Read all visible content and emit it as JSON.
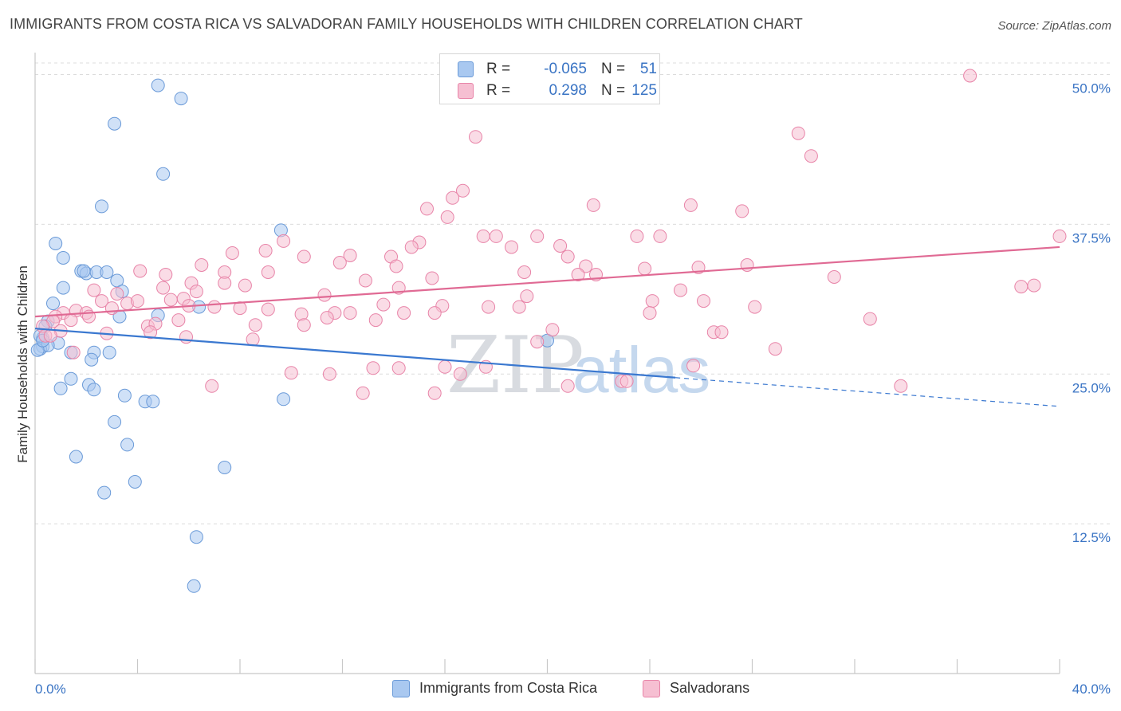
{
  "header": {
    "title": "IMMIGRANTS FROM COSTA RICA VS SALVADORAN FAMILY HOUSEHOLDS WITH CHILDREN CORRELATION CHART",
    "source": "Source: ZipAtlas.com"
  },
  "watermark": {
    "zip": "ZIP",
    "atlas": "atlas"
  },
  "legend": {
    "rows": [
      {
        "r_label": "R =",
        "r_value": "-0.065",
        "n_label": "N =",
        "n_value": "51",
        "color": "#a9c8f0",
        "border": "#6a9ad8"
      },
      {
        "r_label": "R =",
        "r_value": "0.298",
        "n_label": "N =",
        "n_value": "125",
        "color": "#f6bfd2",
        "border": "#e884a8"
      }
    ]
  },
  "bottom_legend": [
    {
      "label": "Immigrants from Costa Rica",
      "color": "#a9c8f0",
      "border": "#6a9ad8"
    },
    {
      "label": "Salvadorans",
      "color": "#f6bfd2",
      "border": "#e884a8"
    }
  ],
  "chart_data": {
    "type": "scatter",
    "title": "IMMIGRANTS FROM COSTA RICA VS SALVADORAN FAMILY HOUSEHOLDS WITH CHILDREN CORRELATION CHART",
    "xlabel": "",
    "ylabel": "Family Households with Children",
    "xlim": [
      0,
      40
    ],
    "ylim": [
      0,
      51.5
    ],
    "x_tick_labels": [
      "0.0%",
      "40.0%"
    ],
    "y_ticks": [
      12.5,
      25.0,
      37.5,
      50.0
    ],
    "y_tick_labels": [
      "12.5%",
      "25.0%",
      "37.5%",
      "50.0%"
    ],
    "grid": "dashed horizontal",
    "legend_position": "top-center",
    "series": [
      {
        "name": "Immigrants from Costa Rica",
        "color": "#6a9ad8",
        "fill": "#a9c8f0",
        "trend": {
          "x0": 0,
          "y0": 28.8,
          "x1": 25.0,
          "y1": 24.7,
          "dash_to_x": 40.0,
          "dash_to_y": 22.3,
          "color": "#3a78d0"
        },
        "points": [
          [
            4.8,
            49.1
          ],
          [
            5.7,
            48.0
          ],
          [
            3.1,
            45.9
          ],
          [
            5.0,
            41.7
          ],
          [
            2.6,
            39.0
          ],
          [
            9.6,
            37.0
          ],
          [
            0.8,
            35.9
          ],
          [
            1.1,
            34.7
          ],
          [
            1.8,
            33.6
          ],
          [
            2.0,
            33.4
          ],
          [
            2.4,
            33.5
          ],
          [
            2.8,
            33.5
          ],
          [
            3.2,
            32.8
          ],
          [
            3.4,
            31.9
          ],
          [
            1.1,
            32.2
          ],
          [
            0.7,
            30.9
          ],
          [
            6.4,
            30.6
          ],
          [
            4.8,
            29.9
          ],
          [
            3.3,
            29.8
          ],
          [
            0.5,
            29.4
          ],
          [
            0.4,
            29.0
          ],
          [
            0.3,
            28.0
          ],
          [
            0.9,
            27.6
          ],
          [
            0.3,
            27.3
          ],
          [
            0.2,
            27.1
          ],
          [
            1.4,
            26.8
          ],
          [
            2.3,
            26.8
          ],
          [
            2.9,
            26.8
          ],
          [
            2.2,
            26.2
          ],
          [
            1.4,
            24.6
          ],
          [
            2.1,
            24.1
          ],
          [
            2.3,
            23.7
          ],
          [
            1.0,
            23.8
          ],
          [
            3.5,
            23.2
          ],
          [
            4.3,
            22.7
          ],
          [
            4.6,
            22.7
          ],
          [
            9.7,
            22.9
          ],
          [
            3.1,
            21.0
          ],
          [
            3.6,
            19.1
          ],
          [
            1.6,
            18.1
          ],
          [
            7.4,
            17.2
          ],
          [
            3.9,
            16.0
          ],
          [
            2.7,
            15.1
          ],
          [
            6.3,
            11.4
          ],
          [
            6.2,
            7.3
          ],
          [
            20.0,
            27.8
          ],
          [
            0.2,
            28.2
          ],
          [
            0.5,
            27.4
          ],
          [
            0.1,
            27.0
          ],
          [
            1.9,
            33.6
          ],
          [
            0.3,
            27.8
          ]
        ]
      },
      {
        "name": "Salvadorans",
        "color": "#e884a8",
        "fill": "#f6bfd2",
        "trend": {
          "x0": 0,
          "y0": 29.8,
          "x1": 40.0,
          "y1": 35.6,
          "color": "#e06a94"
        },
        "points": [
          [
            36.5,
            49.9
          ],
          [
            29.8,
            45.1
          ],
          [
            30.3,
            43.2
          ],
          [
            17.2,
            44.8
          ],
          [
            16.7,
            40.3
          ],
          [
            16.3,
            39.7
          ],
          [
            21.8,
            39.1
          ],
          [
            25.6,
            39.1
          ],
          [
            15.3,
            38.8
          ],
          [
            27.6,
            38.6
          ],
          [
            16.1,
            38.1
          ],
          [
            17.5,
            36.5
          ],
          [
            18.0,
            36.5
          ],
          [
            19.6,
            36.5
          ],
          [
            23.5,
            36.5
          ],
          [
            24.4,
            36.5
          ],
          [
            15.0,
            36.0
          ],
          [
            18.6,
            35.6
          ],
          [
            20.5,
            35.7
          ],
          [
            40.0,
            36.5
          ],
          [
            14.7,
            35.6
          ],
          [
            9.7,
            36.1
          ],
          [
            9.0,
            35.3
          ],
          [
            7.7,
            35.1
          ],
          [
            12.3,
            34.9
          ],
          [
            10.5,
            34.8
          ],
          [
            13.9,
            34.8
          ],
          [
            20.8,
            34.8
          ],
          [
            11.9,
            34.3
          ],
          [
            6.5,
            34.1
          ],
          [
            14.1,
            34.0
          ],
          [
            21.5,
            34.0
          ],
          [
            23.8,
            33.8
          ],
          [
            25.9,
            33.9
          ],
          [
            27.8,
            34.1
          ],
          [
            4.1,
            33.6
          ],
          [
            5.1,
            33.3
          ],
          [
            7.4,
            33.5
          ],
          [
            9.1,
            33.5
          ],
          [
            19.1,
            33.5
          ],
          [
            21.2,
            33.3
          ],
          [
            21.9,
            33.3
          ],
          [
            31.2,
            33.1
          ],
          [
            15.5,
            33.0
          ],
          [
            12.9,
            32.8
          ],
          [
            6.1,
            32.6
          ],
          [
            7.4,
            32.6
          ],
          [
            8.2,
            32.4
          ],
          [
            14.2,
            32.2
          ],
          [
            5.0,
            32.2
          ],
          [
            38.5,
            32.3
          ],
          [
            39.0,
            32.4
          ],
          [
            2.3,
            32.0
          ],
          [
            6.3,
            31.9
          ],
          [
            3.2,
            31.7
          ],
          [
            25.2,
            32.0
          ],
          [
            11.3,
            31.6
          ],
          [
            19.2,
            31.5
          ],
          [
            24.1,
            31.1
          ],
          [
            5.3,
            31.2
          ],
          [
            5.8,
            31.3
          ],
          [
            3.6,
            30.9
          ],
          [
            4.0,
            31.1
          ],
          [
            2.6,
            31.1
          ],
          [
            26.1,
            31.1
          ],
          [
            13.6,
            30.8
          ],
          [
            15.9,
            30.7
          ],
          [
            6.0,
            30.7
          ],
          [
            7.0,
            30.6
          ],
          [
            8.0,
            30.5
          ],
          [
            17.7,
            30.6
          ],
          [
            18.9,
            30.6
          ],
          [
            28.1,
            30.6
          ],
          [
            1.6,
            30.3
          ],
          [
            2.0,
            30.1
          ],
          [
            3.0,
            30.5
          ],
          [
            9.1,
            30.4
          ],
          [
            10.4,
            30.0
          ],
          [
            11.7,
            30.1
          ],
          [
            12.3,
            30.1
          ],
          [
            14.4,
            30.1
          ],
          [
            15.6,
            30.1
          ],
          [
            24.0,
            30.1
          ],
          [
            1.1,
            30.1
          ],
          [
            0.8,
            29.8
          ],
          [
            2.1,
            29.8
          ],
          [
            5.6,
            29.5
          ],
          [
            11.4,
            29.7
          ],
          [
            1.4,
            29.5
          ],
          [
            0.7,
            29.4
          ],
          [
            13.3,
            29.5
          ],
          [
            32.6,
            29.6
          ],
          [
            8.6,
            29.1
          ],
          [
            10.5,
            29.1
          ],
          [
            4.4,
            29.0
          ],
          [
            4.7,
            29.2
          ],
          [
            0.3,
            29.0
          ],
          [
            1.0,
            28.6
          ],
          [
            2.8,
            28.4
          ],
          [
            4.5,
            28.5
          ],
          [
            20.2,
            28.7
          ],
          [
            26.5,
            28.5
          ],
          [
            26.8,
            28.5
          ],
          [
            0.4,
            28.2
          ],
          [
            0.6,
            28.2
          ],
          [
            5.9,
            28.1
          ],
          [
            8.5,
            27.9
          ],
          [
            19.6,
            27.7
          ],
          [
            28.9,
            27.1
          ],
          [
            1.5,
            26.8
          ],
          [
            25.7,
            25.7
          ],
          [
            14.2,
            25.5
          ],
          [
            16.0,
            25.6
          ],
          [
            13.2,
            25.5
          ],
          [
            17.6,
            25.6
          ],
          [
            10.0,
            25.1
          ],
          [
            11.5,
            25.0
          ],
          [
            16.6,
            25.0
          ],
          [
            22.9,
            24.4
          ],
          [
            23.1,
            24.4
          ],
          [
            6.9,
            24.0
          ],
          [
            20.8,
            24.0
          ],
          [
            33.8,
            24.0
          ],
          [
            12.8,
            23.4
          ],
          [
            15.6,
            23.4
          ]
        ]
      }
    ]
  }
}
